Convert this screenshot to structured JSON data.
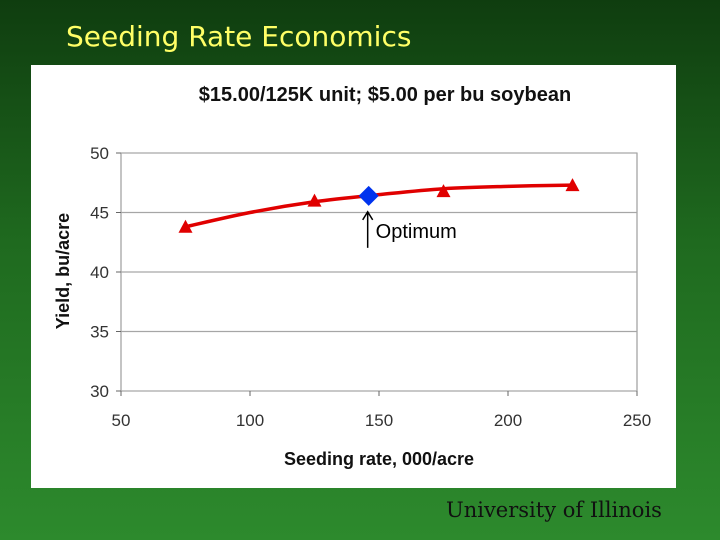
{
  "slide": {
    "title": "Seeding Rate Economics",
    "footer": "University of Illinois"
  },
  "colors": {
    "background": "#1f6a1f",
    "title_text": "#ffff66",
    "series": "#e00000",
    "optimum": "#0033ee",
    "grid": "#a6a6a6"
  },
  "chart_data": {
    "type": "line",
    "title": "$15.00/125K unit; $5.00 per bu soybean",
    "xlabel": "Seeding rate, 000/acre",
    "ylabel": "Yield, bu/acre",
    "xlim": [
      50,
      250
    ],
    "ylim": [
      30,
      50
    ],
    "x_ticks": [
      50,
      100,
      150,
      200,
      250
    ],
    "y_ticks": [
      30,
      35,
      40,
      45,
      50
    ],
    "grid": true,
    "series": [
      {
        "marker": "triangle",
        "points": [
          [
            75,
            43.8
          ],
          [
            125,
            46.0
          ],
          [
            175,
            46.8
          ],
          [
            225,
            47.3
          ]
        ],
        "curve": [
          [
            75,
            43.8
          ],
          [
            100,
            45.0
          ],
          [
            125,
            45.9
          ],
          [
            150,
            46.5
          ],
          [
            175,
            47.0
          ],
          [
            200,
            47.2
          ],
          [
            225,
            47.3
          ]
        ]
      }
    ],
    "optimum": {
      "x": 146,
      "y": 46.4,
      "marker": "diamond",
      "label": "Optimum"
    }
  }
}
